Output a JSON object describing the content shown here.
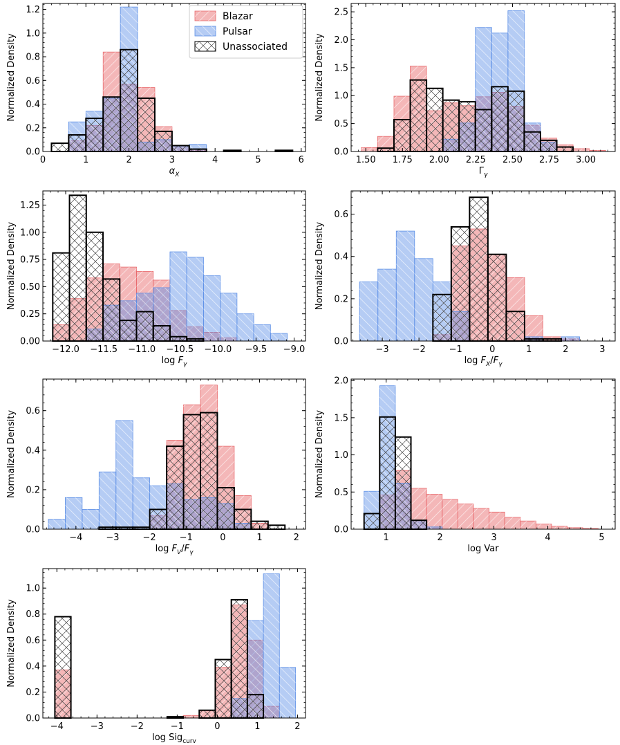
{
  "figure": {
    "colors": {
      "blazar": "#e8686b",
      "pulsar": "#5b8ee6",
      "unassociated": "#000000"
    },
    "legend": {
      "entries": [
        "Blazar",
        "Pulsar",
        "Unassociated"
      ],
      "location": "upper right of first panel"
    }
  },
  "chart_data": [
    {
      "type": "bar",
      "xlabel": "αX",
      "ylabel": "Normalized Density",
      "xlim": [
        0,
        6.1
      ],
      "ylim": [
        0,
        1.25
      ],
      "xticks": [
        0,
        1,
        2,
        3,
        4,
        5,
        6
      ],
      "xtick_labels": [
        "0",
        "1",
        "2",
        "3",
        "4",
        "5",
        "6"
      ],
      "yticks": [
        0,
        0.2,
        0.4,
        0.6,
        0.8,
        1.0,
        1.2
      ],
      "ytick_labels": [
        "0.0",
        "0.2",
        "0.4",
        "0.6",
        "0.8",
        "1.0",
        "1.2"
      ],
      "edges": [
        0.2,
        0.6,
        1.0,
        1.4,
        1.8,
        2.2,
        2.6,
        3.0,
        3.4,
        3.8,
        4.2,
        4.6,
        5.0,
        5.4,
        5.8
      ],
      "series": [
        {
          "name": "Blazar",
          "values": [
            0.0,
            0.09,
            0.22,
            0.84,
            0.57,
            0.54,
            0.21,
            0.05,
            0.01,
            0.0,
            0.0,
            0.0,
            0.0,
            0.0
          ]
        },
        {
          "name": "Pulsar",
          "values": [
            0.0,
            0.25,
            0.34,
            0.45,
            1.22,
            0.08,
            0.1,
            0.04,
            0.06,
            0.0,
            0.0,
            0.0,
            0.0,
            0.0
          ]
        },
        {
          "name": "Unassociated",
          "values": [
            0.07,
            0.14,
            0.28,
            0.46,
            0.86,
            0.45,
            0.17,
            0.05,
            0.02,
            0.0,
            0.01,
            0.0,
            0.0,
            0.01
          ]
        }
      ]
    },
    {
      "type": "bar",
      "xlabel": "Γγ",
      "ylabel": "",
      "xlim": [
        1.4,
        3.2
      ],
      "ylim": [
        0,
        2.65
      ],
      "xticks": [
        1.5,
        1.75,
        2.0,
        2.25,
        2.5,
        2.75,
        3.0
      ],
      "xtick_labels": [
        "1.50",
        "1.75",
        "2.00",
        "2.25",
        "2.50",
        "2.75",
        "3.00"
      ],
      "yticks": [
        0,
        0.5,
        1.0,
        1.5,
        2.0,
        2.5
      ],
      "ytick_labels": [
        "0.0",
        "0.5",
        "1.0",
        "1.5",
        "2.0",
        "2.5"
      ],
      "edges": [
        1.47,
        1.581,
        1.692,
        1.803,
        1.914,
        2.025,
        2.136,
        2.247,
        2.358,
        2.469,
        2.58,
        2.691,
        2.802,
        2.913,
        3.024,
        3.135
      ],
      "series": [
        {
          "name": "Blazar",
          "values": [
            0.07,
            0.27,
            0.99,
            1.53,
            0.73,
            0.87,
            0.82,
            0.98,
            1.06,
            0.81,
            0.47,
            0.24,
            0.12,
            0.05,
            0.02
          ]
        },
        {
          "name": "Pulsar",
          "values": [
            0.0,
            0.0,
            0.0,
            0.0,
            0.0,
            0.22,
            0.51,
            2.22,
            2.12,
            2.52,
            0.51,
            0.17,
            0.0,
            0.0,
            0.0
          ]
        },
        {
          "name": "Unassociated",
          "values": [
            0.0,
            0.06,
            0.57,
            1.28,
            1.13,
            0.92,
            0.89,
            0.75,
            1.16,
            1.08,
            0.35,
            0.2,
            0.08,
            0.0,
            0.0
          ]
        }
      ]
    },
    {
      "type": "bar",
      "xlabel": "log Fγ",
      "ylabel": "Normalized Density",
      "xlim": [
        -12.3,
        -8.85
      ],
      "ylim": [
        0,
        1.38
      ],
      "xticks": [
        -12.0,
        -11.5,
        -11.0,
        -10.5,
        -10.0,
        -9.5,
        -9.0
      ],
      "xtick_labels": [
        "−12.0",
        "−11.5",
        "−11.0",
        "−10.5",
        "−10.0",
        "−9.5",
        "−9.0"
      ],
      "yticks": [
        0,
        0.25,
        0.5,
        0.75,
        1.0,
        1.25
      ],
      "ytick_labels": [
        "0.00",
        "0.25",
        "0.50",
        "0.75",
        "1.00",
        "1.25"
      ],
      "edges": [
        -12.17,
        -11.95,
        -11.73,
        -11.51,
        -11.29,
        -11.07,
        -10.85,
        -10.63,
        -10.41,
        -10.19,
        -9.97,
        -9.75,
        -9.53,
        -9.31,
        -9.09
      ],
      "series": [
        {
          "name": "Blazar",
          "values": [
            0.15,
            0.39,
            0.58,
            0.71,
            0.68,
            0.64,
            0.56,
            0.28,
            0.13,
            0.08,
            0.03,
            0.0,
            0.0,
            0.0
          ]
        },
        {
          "name": "Pulsar",
          "values": [
            0.0,
            0.0,
            0.11,
            0.33,
            0.37,
            0.44,
            0.49,
            0.82,
            0.77,
            0.6,
            0.44,
            0.25,
            0.15,
            0.07
          ]
        },
        {
          "name": "Unassociated",
          "values": [
            0.81,
            1.34,
            1.0,
            0.57,
            0.19,
            0.27,
            0.14,
            0.04,
            0.02,
            0.0,
            0.0,
            0.0,
            0.0,
            0.0
          ]
        }
      ]
    },
    {
      "type": "bar",
      "xlabel": "log FX/Fγ",
      "ylabel": "",
      "xlim": [
        -3.85,
        3.35
      ],
      "ylim": [
        0,
        0.71
      ],
      "xticks": [
        -3,
        -2,
        -1,
        0,
        1,
        2,
        3
      ],
      "xtick_labels": [
        "−3",
        "−2",
        "−1",
        "0",
        "1",
        "2",
        "3"
      ],
      "yticks": [
        0,
        0.2,
        0.4,
        0.6
      ],
      "ytick_labels": [
        "0.0",
        "0.2",
        "0.4",
        "0.6"
      ],
      "edges": [
        -3.62,
        -3.12,
        -2.62,
        -2.12,
        -1.62,
        -1.12,
        -0.62,
        -0.12,
        0.38,
        0.88,
        1.38,
        1.88,
        2.38,
        2.88
      ],
      "series": [
        {
          "name": "Blazar",
          "values": [
            0.0,
            0.0,
            0.0,
            0.0,
            0.03,
            0.45,
            0.53,
            0.41,
            0.3,
            0.12,
            0.02,
            0.01,
            0.0
          ]
        },
        {
          "name": "Pulsar",
          "values": [
            0.28,
            0.34,
            0.52,
            0.39,
            0.28,
            0.14,
            0.0,
            0.0,
            0.0,
            0.02,
            0.0,
            0.02,
            0.0
          ]
        },
        {
          "name": "Unassociated",
          "values": [
            0.0,
            0.0,
            0.0,
            0.0,
            0.22,
            0.54,
            0.68,
            0.41,
            0.14,
            0.01,
            0.01,
            0.0,
            0.0
          ]
        }
      ]
    },
    {
      "type": "bar",
      "xlabel": "log FV/Fγ",
      "ylabel": "Normalized Density",
      "xlim": [
        -4.9,
        2.25
      ],
      "ylim": [
        0,
        0.76
      ],
      "xticks": [
        -4,
        -3,
        -2,
        -1,
        0,
        1,
        2
      ],
      "xtick_labels": [
        "−4",
        "−3",
        "−2",
        "−1",
        "0",
        "1",
        "2"
      ],
      "yticks": [
        0,
        0.2,
        0.4,
        0.6
      ],
      "ytick_labels": [
        "0.0",
        "0.2",
        "0.4",
        "0.6"
      ],
      "edges": [
        -4.75,
        -4.29,
        -3.83,
        -3.37,
        -2.91,
        -2.45,
        -1.99,
        -1.53,
        -1.07,
        -0.61,
        -0.15,
        0.31,
        0.77,
        1.23,
        1.69
      ],
      "series": [
        {
          "name": "Blazar",
          "values": [
            0.0,
            0.0,
            0.0,
            0.0,
            0.0,
            0.0,
            0.07,
            0.45,
            0.63,
            0.73,
            0.42,
            0.17,
            0.03,
            0.0
          ]
        },
        {
          "name": "Pulsar",
          "values": [
            0.05,
            0.16,
            0.1,
            0.29,
            0.55,
            0.26,
            0.22,
            0.23,
            0.15,
            0.16,
            0.13,
            0.03,
            0.0,
            0.0
          ]
        },
        {
          "name": "Unassociated",
          "values": [
            0.0,
            0.0,
            0.0,
            0.01,
            0.01,
            0.01,
            0.1,
            0.42,
            0.58,
            0.59,
            0.21,
            0.1,
            0.04,
            0.02
          ]
        }
      ]
    },
    {
      "type": "bar",
      "xlabel": "log Var",
      "ylabel": "",
      "xlim": [
        0.35,
        5.25
      ],
      "ylim": [
        0,
        2.02
      ],
      "xticks": [
        1,
        2,
        3,
        4,
        5
      ],
      "xtick_labels": [
        "1",
        "2",
        "3",
        "4",
        "5"
      ],
      "yticks": [
        0,
        0.5,
        1.0,
        1.5,
        2.0
      ],
      "ytick_labels": [
        "0.0",
        "0.5",
        "1.0",
        "1.5",
        "2.0"
      ],
      "edges": [
        0.59,
        0.88,
        1.17,
        1.46,
        1.75,
        2.04,
        2.33,
        2.62,
        2.91,
        3.2,
        3.49,
        3.78,
        4.07,
        4.36,
        4.65,
        4.94
      ],
      "series": [
        {
          "name": "Blazar",
          "values": [
            0.0,
            0.46,
            0.79,
            0.55,
            0.47,
            0.4,
            0.34,
            0.28,
            0.23,
            0.16,
            0.11,
            0.07,
            0.04,
            0.02,
            0.01
          ]
        },
        {
          "name": "Pulsar",
          "values": [
            0.51,
            1.93,
            0.62,
            0.1,
            0.03,
            0.0,
            0.0,
            0.0,
            0.0,
            0.0,
            0.0,
            0.0,
            0.0,
            0.0,
            0.0
          ]
        },
        {
          "name": "Unassociated",
          "values": [
            0.21,
            1.51,
            1.24,
            0.12,
            0.0,
            0.0,
            0.0,
            0.0,
            0.0,
            0.0,
            0.0,
            0.0,
            0.0,
            0.0,
            0.0
          ]
        }
      ]
    },
    {
      "type": "bar",
      "xlabel": "log Sigcurv",
      "ylabel": "Normalized Density",
      "xlim": [
        -4.35,
        2.2
      ],
      "ylim": [
        0,
        1.15
      ],
      "xticks": [
        -4,
        -3,
        -2,
        -1,
        0,
        1,
        2
      ],
      "xtick_labels": [
        "−4",
        "−3",
        "−2",
        "−1",
        "0",
        "1",
        "2"
      ],
      "yticks": [
        0,
        0.2,
        0.4,
        0.6,
        0.8,
        1.0
      ],
      "ytick_labels": [
        "0.0",
        "0.2",
        "0.4",
        "0.6",
        "0.8",
        "1.0"
      ],
      "edges": [
        -4.05,
        -3.65,
        -3.25,
        -2.85,
        -2.45,
        -2.05,
        -1.65,
        -1.25,
        -0.85,
        -0.45,
        -0.05,
        0.35,
        0.75,
        1.15,
        1.55,
        1.95
      ],
      "series": [
        {
          "name": "Blazar",
          "values": [
            0.37,
            0.0,
            0.0,
            0.0,
            0.0,
            0.0,
            0.0,
            0.01,
            0.02,
            0.06,
            0.39,
            0.87,
            0.6,
            0.09,
            0.0
          ]
        },
        {
          "name": "Pulsar",
          "values": [
            0.0,
            0.0,
            0.0,
            0.0,
            0.0,
            0.0,
            0.0,
            0.0,
            0.0,
            0.0,
            0.0,
            0.15,
            0.75,
            1.11,
            0.39
          ]
        },
        {
          "name": "Unassociated",
          "values": [
            0.78,
            0.0,
            0.0,
            0.0,
            0.0,
            0.0,
            0.0,
            0.01,
            0.0,
            0.06,
            0.45,
            0.91,
            0.18,
            0.0,
            0.0
          ]
        }
      ]
    }
  ]
}
